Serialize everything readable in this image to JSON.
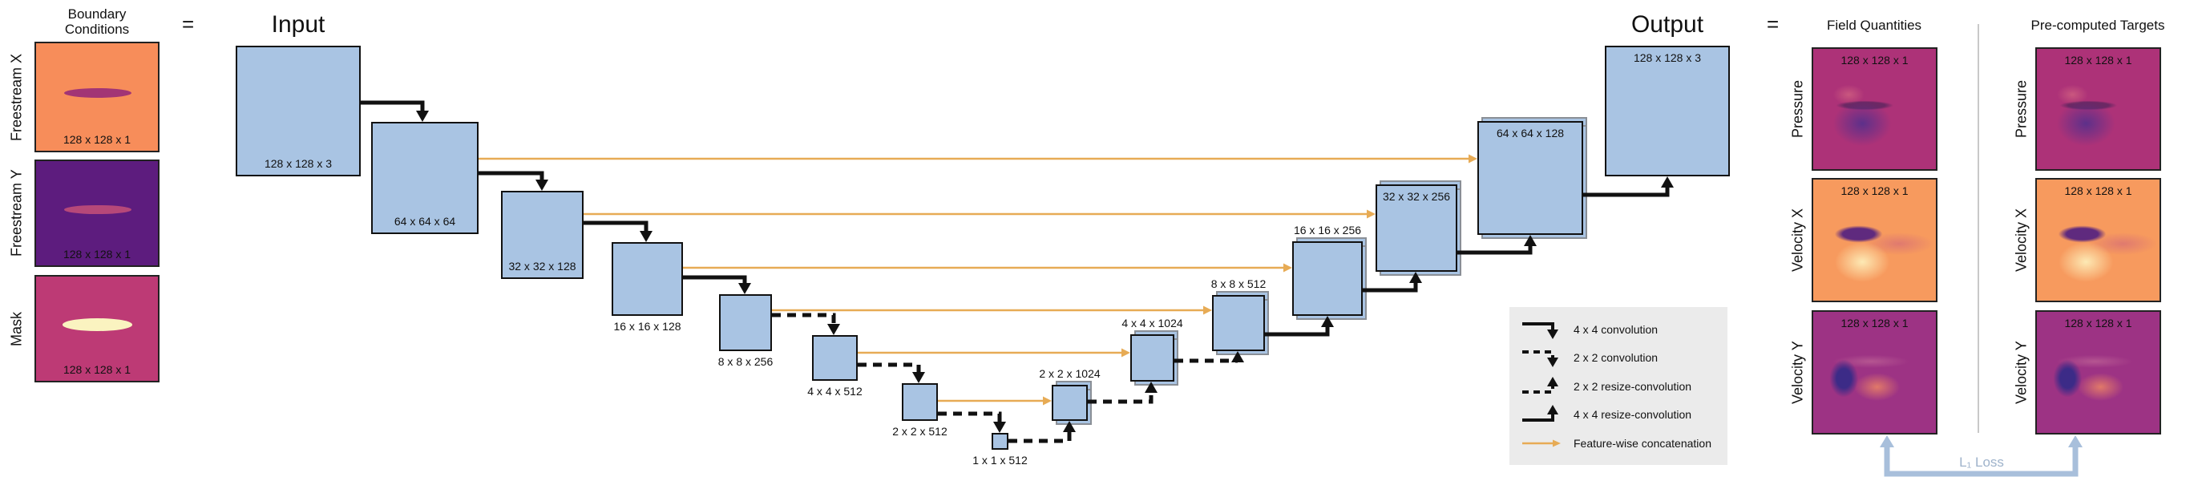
{
  "boundary": {
    "title_line1": "Boundary",
    "title_line2": "Conditions",
    "equals": "=",
    "items": [
      {
        "label": "Freestream X",
        "dims": "128 x 128 x 1"
      },
      {
        "label": "Freestream Y",
        "dims": "128 x 128 x 1"
      },
      {
        "label": "Mask",
        "dims": "128 x 128 x 1"
      }
    ]
  },
  "unet": {
    "input_title": "Input",
    "output_title": "Output",
    "blocks": [
      {
        "id": "input",
        "label": "128 x 128 x 3"
      },
      {
        "id": "enc-64",
        "label": "64 x 64 x 64"
      },
      {
        "id": "enc-32",
        "label": "32 x 32 x 128"
      },
      {
        "id": "enc-16",
        "label": "16 x 16 x 128"
      },
      {
        "id": "enc-8",
        "label": "8 x 8 x 256"
      },
      {
        "id": "enc-4",
        "label": "4 x 4 x 512"
      },
      {
        "id": "enc-2",
        "label": "2 x 2 x 512"
      },
      {
        "id": "bottleneck",
        "label": "1 x 1 x 512"
      },
      {
        "id": "dec-2",
        "label": "2 x 2 x 1024"
      },
      {
        "id": "dec-4",
        "label": "4 x 4 x 1024"
      },
      {
        "id": "dec-8",
        "label": "8 x 8 x 512"
      },
      {
        "id": "dec-16",
        "label": "16 x 16 x 256"
      },
      {
        "id": "dec-32",
        "label": "32 x 32 x 256"
      },
      {
        "id": "dec-64",
        "label": "64 x 64 x 128"
      },
      {
        "id": "output",
        "label": "128 x 128 x 3"
      }
    ]
  },
  "legend": {
    "items": [
      {
        "type": "conv44",
        "label": "4 x 4 convolution"
      },
      {
        "type": "conv22",
        "label": "2 x 2 convolution"
      },
      {
        "type": "resize22",
        "label": "2 x 2 resize-convolution"
      },
      {
        "type": "resize44",
        "label": "4 x 4 resize-convolution"
      },
      {
        "type": "concat",
        "label": "Feature-wise concatenation"
      }
    ]
  },
  "outputs": {
    "equals": "=",
    "field_quantities": {
      "title": "Field Quantities",
      "rows": [
        {
          "label": "Pressure",
          "dims": "128 x 128 x 1"
        },
        {
          "label": "Velocity X",
          "dims": "128 x 128 x 1"
        },
        {
          "label": "Velocity Y",
          "dims": "128 x 128 x 1"
        }
      ]
    },
    "targets": {
      "title": "Pre-computed Targets",
      "rows": [
        {
          "label": "Pressure",
          "dims": "128 x 128 x 1"
        },
        {
          "label": "Velocity X",
          "dims": "128 x 128 x 1"
        },
        {
          "label": "Velocity Y",
          "dims": "128 x 128 x 1"
        }
      ]
    }
  },
  "loss": {
    "label": "L₁ Loss"
  },
  "colors": {
    "block_fill": "#a9c4e3",
    "concat": "#e7ab55",
    "loss": "#a8bfdb",
    "legend_bg": "#ebebeb",
    "fx_bg": "#f78d5a",
    "fx_airfoil": "#a23575",
    "fy_bg": "#5d1c7e",
    "fy_airfoil": "#b64879",
    "mask_bg": "#bd3a75",
    "mask_airfoil": "#faf3c0",
    "pressure_bg": "#ad3278",
    "velx_bg": "#f79a5e",
    "vely_bg": "#9d3384"
  }
}
